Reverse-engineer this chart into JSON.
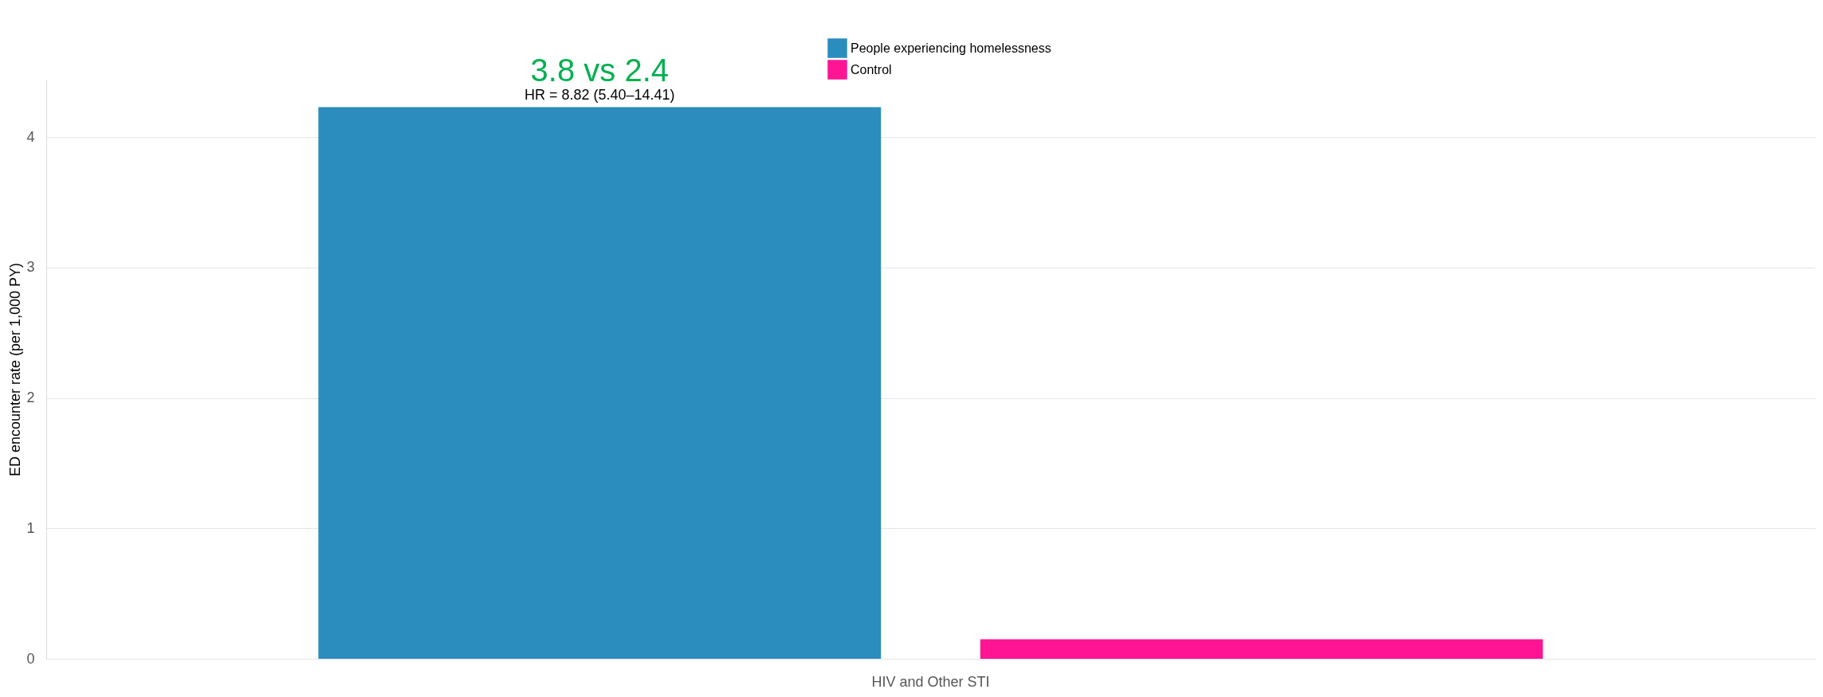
{
  "chart_data": {
    "type": "bar",
    "ylabel": "ED encounter rate (per 1,000 PY)",
    "categories": [
      "HIV and Other STI"
    ],
    "series": [
      {
        "name": "People experiencing homelessness",
        "color": "#2b8cbe",
        "values": [
          4.23
        ]
      },
      {
        "name": "Control",
        "color": "#ff1493",
        "values": [
          0.15
        ]
      }
    ],
    "ylim": [
      0,
      4.44
    ],
    "yticks": [
      0,
      1,
      2,
      3,
      4
    ],
    "grid": "y",
    "legend": "top",
    "annotations": [
      "3.8 vs 2.4",
      "HR = 8.82 (5.40–14.41)"
    ]
  }
}
